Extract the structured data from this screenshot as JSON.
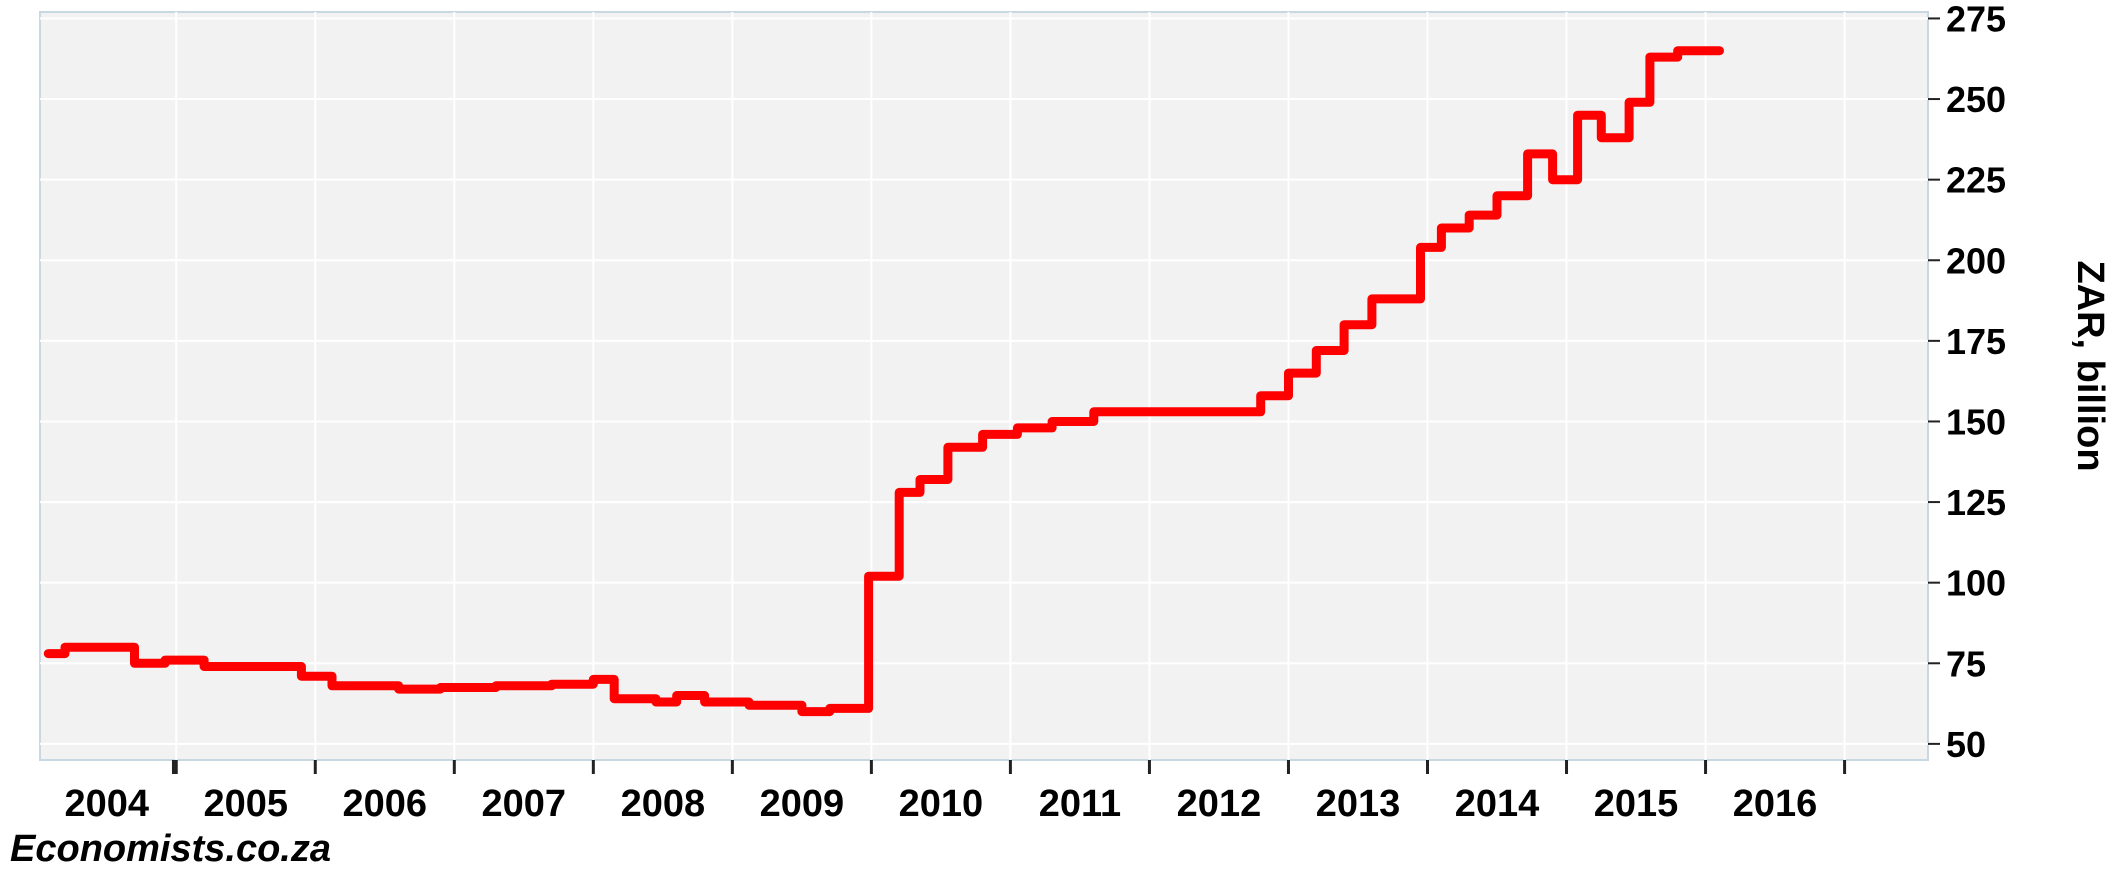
{
  "source_text": "Economists.co.za",
  "chart_data": {
    "type": "line",
    "title": "",
    "xlabel": "",
    "ylabel": "ZAR, billion",
    "x_tick_labels": [
      "2004",
      "2005",
      "2006",
      "2007",
      "2008",
      "2009",
      "2010",
      "2011",
      "2012",
      "2013",
      "2014",
      "2015",
      "2016"
    ],
    "y_tick_labels": [
      "50",
      "75",
      "100",
      "125",
      "150",
      "175",
      "200",
      "225",
      "250",
      "275"
    ],
    "xlim": [
      2003.02,
      2016.6
    ],
    "ylim": [
      45,
      277
    ],
    "grid": true,
    "y_axis_side": "right",
    "line_color": "#ff0000",
    "plot_background": "#f2f2f2",
    "series": [
      {
        "values": [
          [
            2003.08,
            78
          ],
          [
            2003.2,
            78
          ],
          [
            2003.2,
            80
          ],
          [
            2003.7,
            80
          ],
          [
            2003.7,
            75
          ],
          [
            2003.92,
            75
          ],
          [
            2003.92,
            76
          ],
          [
            2004.2,
            76
          ],
          [
            2004.2,
            74
          ],
          [
            2004.9,
            74
          ],
          [
            2004.9,
            71
          ],
          [
            2005.12,
            71
          ],
          [
            2005.12,
            68
          ],
          [
            2005.6,
            68
          ],
          [
            2005.6,
            67
          ],
          [
            2005.9,
            67
          ],
          [
            2005.9,
            67.5
          ],
          [
            2006.3,
            67.5
          ],
          [
            2006.3,
            68
          ],
          [
            2006.7,
            68
          ],
          [
            2006.7,
            68.5
          ],
          [
            2007.0,
            68.5
          ],
          [
            2007.0,
            70
          ],
          [
            2007.15,
            70
          ],
          [
            2007.15,
            64
          ],
          [
            2007.45,
            64
          ],
          [
            2007.45,
            63
          ],
          [
            2007.6,
            63
          ],
          [
            2007.6,
            65
          ],
          [
            2007.8,
            65
          ],
          [
            2007.8,
            63
          ],
          [
            2008.12,
            63
          ],
          [
            2008.12,
            62
          ],
          [
            2008.5,
            62
          ],
          [
            2008.5,
            60
          ],
          [
            2008.7,
            60
          ],
          [
            2008.7,
            61
          ],
          [
            2008.98,
            61
          ],
          [
            2008.98,
            102
          ],
          [
            2009.2,
            102
          ],
          [
            2009.2,
            128
          ],
          [
            2009.35,
            128
          ],
          [
            2009.35,
            132
          ],
          [
            2009.55,
            132
          ],
          [
            2009.55,
            142
          ],
          [
            2009.8,
            142
          ],
          [
            2009.8,
            146
          ],
          [
            2010.05,
            146
          ],
          [
            2010.05,
            148
          ],
          [
            2010.3,
            148
          ],
          [
            2010.3,
            150
          ],
          [
            2010.6,
            150
          ],
          [
            2010.6,
            153
          ],
          [
            2011.8,
            153
          ],
          [
            2011.8,
            158
          ],
          [
            2012.0,
            158
          ],
          [
            2012.0,
            165
          ],
          [
            2012.2,
            165
          ],
          [
            2012.2,
            172
          ],
          [
            2012.4,
            172
          ],
          [
            2012.4,
            180
          ],
          [
            2012.6,
            180
          ],
          [
            2012.6,
            188
          ],
          [
            2012.95,
            188
          ],
          [
            2012.95,
            204
          ],
          [
            2013.1,
            204
          ],
          [
            2013.1,
            210
          ],
          [
            2013.3,
            210
          ],
          [
            2013.3,
            214
          ],
          [
            2013.5,
            214
          ],
          [
            2013.5,
            220
          ],
          [
            2013.72,
            220
          ],
          [
            2013.72,
            233
          ],
          [
            2013.9,
            233
          ],
          [
            2013.9,
            225
          ],
          [
            2014.08,
            225
          ],
          [
            2014.08,
            245
          ],
          [
            2014.25,
            245
          ],
          [
            2014.25,
            238
          ],
          [
            2014.45,
            238
          ],
          [
            2014.45,
            249
          ],
          [
            2014.6,
            249
          ],
          [
            2014.6,
            263
          ],
          [
            2014.8,
            263
          ],
          [
            2014.8,
            265
          ],
          [
            2015.1,
            265
          ]
        ]
      }
    ]
  }
}
